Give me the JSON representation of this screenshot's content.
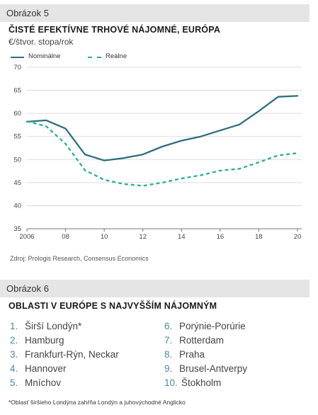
{
  "figure5": {
    "header": "Obrázok 5",
    "title": "ČISTÉ EFEKTÍVNE TRHOVÉ NÁJOMNÉ, EURÓPA",
    "subtitle": "€/štvor. stopa/rok",
    "source": "Zdroj: Prologis Research, Consensus Economics"
  },
  "chart_data": {
    "type": "line",
    "ylim": [
      35,
      70
    ],
    "yticks": [
      35,
      40,
      45,
      50,
      55,
      60,
      65,
      70
    ],
    "xlim": [
      2006,
      2020
    ],
    "xticks": [
      2006,
      2008,
      2010,
      2012,
      2014,
      2016,
      2018,
      2020
    ],
    "xtick_labels": [
      "2006",
      "08",
      "10",
      "12",
      "14",
      "16",
      "18",
      "20"
    ],
    "grid": "horizontal",
    "legend_position": "top-left",
    "series": [
      {
        "name": "Nominálne",
        "style": "solid",
        "color": "#2e6f80",
        "x": [
          2006,
          2007,
          2008,
          2009,
          2010,
          2011,
          2012,
          2013,
          2014,
          2015,
          2016,
          2017,
          2018,
          2019,
          2020
        ],
        "values": [
          58.2,
          58.5,
          56.7,
          51.1,
          49.8,
          50.3,
          51.1,
          52.8,
          54.1,
          55.0,
          56.3,
          57.6,
          60.5,
          63.6,
          63.8
        ]
      },
      {
        "name": "Reálne",
        "style": "dashed",
        "color": "#2aad9b",
        "x": [
          2006,
          2007,
          2008,
          2009,
          2010,
          2011,
          2012,
          2013,
          2014,
          2015,
          2016,
          2017,
          2018,
          2019,
          2020
        ],
        "values": [
          58.3,
          57.2,
          53.4,
          47.7,
          45.6,
          44.7,
          44.3,
          45.0,
          45.9,
          46.6,
          47.6,
          48.0,
          49.4,
          50.9,
          51.4
        ]
      }
    ]
  },
  "figure6": {
    "header": "Obrázok 6",
    "title": "OBLASTI V EURÓPE S NAJVYŠŠÍM NÁJOMNÝM",
    "left_items": [
      {
        "num": "1.",
        "label": "Širší Londýn*"
      },
      {
        "num": "2.",
        "label": "Hamburg"
      },
      {
        "num": "3.",
        "label": "Frankfurt-Rýn, Neckar"
      },
      {
        "num": "4.",
        "label": "Hannover"
      },
      {
        "num": "5.",
        "label": "Mníchov"
      }
    ],
    "right_items": [
      {
        "num": "6.",
        "label": "Porýnie-Porúrie"
      },
      {
        "num": "7.",
        "label": "Rotterdam"
      },
      {
        "num": "8.",
        "label": "Praha"
      },
      {
        "num": "9.",
        "label": "Brusel-Antverpy"
      },
      {
        "num": "10.",
        "label": "Štokholm"
      }
    ],
    "footnote": "*Oblasť širšieho Londýna zahŕňa Londýn a juhovýchodné Anglicko"
  }
}
